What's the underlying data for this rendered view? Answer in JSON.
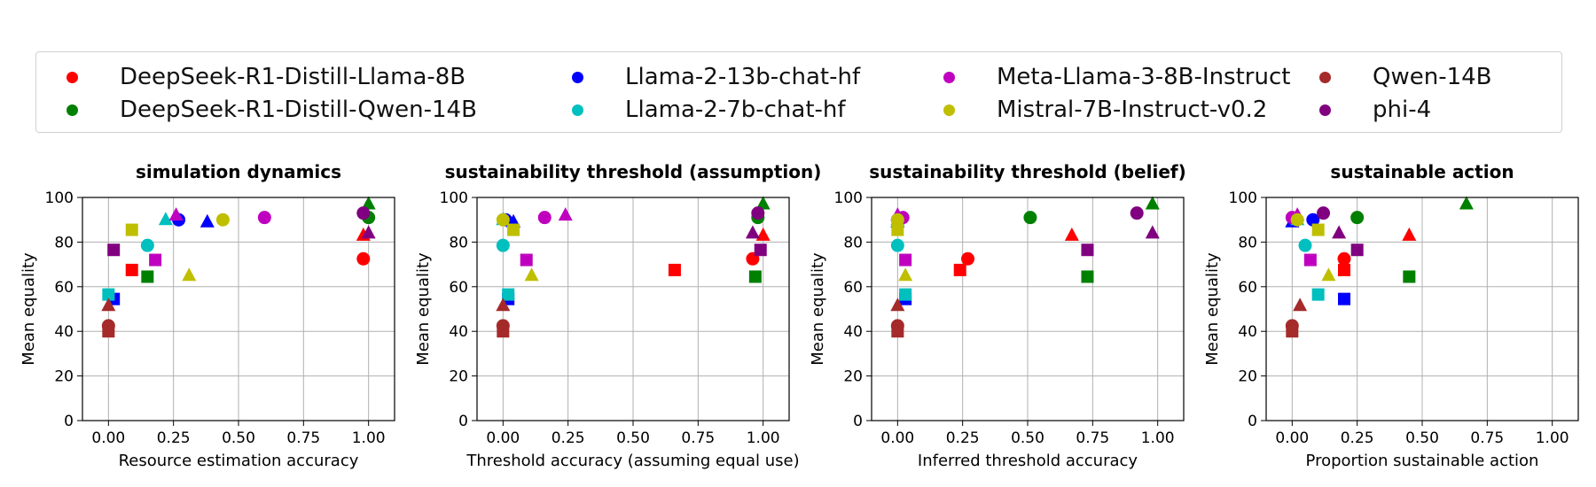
{
  "legend": {
    "entries": [
      {
        "name": "DeepSeek-R1-Distill-Llama-8B",
        "color": "#ff0000"
      },
      {
        "name": "DeepSeek-R1-Distill-Qwen-14B",
        "color": "#008000"
      },
      {
        "name": "Llama-2-13b-chat-hf",
        "color": "#0000ff"
      },
      {
        "name": "Llama-2-7b-chat-hf",
        "color": "#00bfbf"
      },
      {
        "name": "Meta-Llama-3-8B-Instruct",
        "color": "#bf00bf"
      },
      {
        "name": "Mistral-7B-Instruct-v0.2",
        "color": "#bfbf00"
      },
      {
        "name": "Qwen-14B",
        "color": "#a52a2a"
      },
      {
        "name": "phi-4",
        "color": "#800080"
      }
    ],
    "placement": "top, above panels, 4 columns"
  },
  "chart_data": [
    {
      "type": "scatter",
      "title": "simulation dynamics",
      "xlabel": "Resource estimation accuracy",
      "ylabel": "Mean equality",
      "xlim": [
        -0.1,
        1.1
      ],
      "ylim": [
        0,
        100
      ],
      "xticks": [
        "0.00",
        "0.25",
        "0.50",
        "0.75",
        "1.00"
      ],
      "yticks": [
        "0",
        "20",
        "40",
        "60",
        "80",
        "100"
      ],
      "grid": true,
      "points": [
        {
          "series": "DeepSeek-R1-Distill-Llama-8B",
          "marker": "circle",
          "x": 0.98,
          "y": 72.5
        },
        {
          "series": "DeepSeek-R1-Distill-Llama-8B",
          "marker": "square",
          "x": 0.09,
          "y": 67.5
        },
        {
          "series": "DeepSeek-R1-Distill-Llama-8B",
          "marker": "triangle",
          "x": 0.98,
          "y": 83
        },
        {
          "series": "DeepSeek-R1-Distill-Qwen-14B",
          "marker": "circle",
          "x": 1.0,
          "y": 91
        },
        {
          "series": "DeepSeek-R1-Distill-Qwen-14B",
          "marker": "square",
          "x": 0.15,
          "y": 64.5
        },
        {
          "series": "DeepSeek-R1-Distill-Qwen-14B",
          "marker": "triangle",
          "x": 1.0,
          "y": 97
        },
        {
          "series": "Llama-2-13b-chat-hf",
          "marker": "circle",
          "x": 0.27,
          "y": 90
        },
        {
          "series": "Llama-2-13b-chat-hf",
          "marker": "square",
          "x": 0.02,
          "y": 54.5
        },
        {
          "series": "Llama-2-13b-chat-hf",
          "marker": "triangle",
          "x": 0.38,
          "y": 89
        },
        {
          "series": "Llama-2-7b-chat-hf",
          "marker": "circle",
          "x": 0.15,
          "y": 78.5
        },
        {
          "series": "Llama-2-7b-chat-hf",
          "marker": "square",
          "x": 0.0,
          "y": 56.5
        },
        {
          "series": "Llama-2-7b-chat-hf",
          "marker": "triangle",
          "x": 0.22,
          "y": 90
        },
        {
          "series": "Meta-Llama-3-8B-Instruct",
          "marker": "circle",
          "x": 0.6,
          "y": 91
        },
        {
          "series": "Meta-Llama-3-8B-Instruct",
          "marker": "square",
          "x": 0.18,
          "y": 72
        },
        {
          "series": "Meta-Llama-3-8B-Instruct",
          "marker": "triangle",
          "x": 0.26,
          "y": 92
        },
        {
          "series": "Mistral-7B-Instruct-v0.2",
          "marker": "circle",
          "x": 0.44,
          "y": 90
        },
        {
          "series": "Mistral-7B-Instruct-v0.2",
          "marker": "square",
          "x": 0.09,
          "y": 85.5
        },
        {
          "series": "Mistral-7B-Instruct-v0.2",
          "marker": "triangle",
          "x": 0.31,
          "y": 65
        },
        {
          "series": "Qwen-14B",
          "marker": "circle",
          "x": 0.0,
          "y": 42.5
        },
        {
          "series": "Qwen-14B",
          "marker": "square",
          "x": 0.0,
          "y": 40
        },
        {
          "series": "Qwen-14B",
          "marker": "triangle",
          "x": 0.0,
          "y": 51.5
        },
        {
          "series": "phi-4",
          "marker": "circle",
          "x": 0.98,
          "y": 93
        },
        {
          "series": "phi-4",
          "marker": "square",
          "x": 0.02,
          "y": 76.5
        },
        {
          "series": "phi-4",
          "marker": "triangle",
          "x": 1.0,
          "y": 84
        }
      ]
    },
    {
      "type": "scatter",
      "title": "sustainability threshold (assumption)",
      "xlabel": "Threshold accuracy (assuming equal use)",
      "ylabel": "Mean equality",
      "xlim": [
        -0.1,
        1.1
      ],
      "ylim": [
        0,
        100
      ],
      "xticks": [
        "0.00",
        "0.25",
        "0.50",
        "0.75",
        "1.00"
      ],
      "yticks": [
        "0",
        "20",
        "40",
        "60",
        "80",
        "100"
      ],
      "grid": true,
      "points": [
        {
          "series": "DeepSeek-R1-Distill-Llama-8B",
          "marker": "circle",
          "x": 0.96,
          "y": 72.5
        },
        {
          "series": "DeepSeek-R1-Distill-Llama-8B",
          "marker": "square",
          "x": 0.66,
          "y": 67.5
        },
        {
          "series": "DeepSeek-R1-Distill-Llama-8B",
          "marker": "triangle",
          "x": 1.0,
          "y": 83
        },
        {
          "series": "DeepSeek-R1-Distill-Qwen-14B",
          "marker": "circle",
          "x": 0.98,
          "y": 91
        },
        {
          "series": "DeepSeek-R1-Distill-Qwen-14B",
          "marker": "square",
          "x": 0.97,
          "y": 64.5
        },
        {
          "series": "DeepSeek-R1-Distill-Qwen-14B",
          "marker": "triangle",
          "x": 1.0,
          "y": 97
        },
        {
          "series": "Llama-2-13b-chat-hf",
          "marker": "circle",
          "x": 0.01,
          "y": 90
        },
        {
          "series": "Llama-2-13b-chat-hf",
          "marker": "square",
          "x": 0.02,
          "y": 54.5
        },
        {
          "series": "Llama-2-13b-chat-hf",
          "marker": "triangle",
          "x": 0.04,
          "y": 89
        },
        {
          "series": "Llama-2-7b-chat-hf",
          "marker": "circle",
          "x": 0.0,
          "y": 78.5
        },
        {
          "series": "Llama-2-7b-chat-hf",
          "marker": "square",
          "x": 0.02,
          "y": 56.5
        },
        {
          "series": "Llama-2-7b-chat-hf",
          "marker": "triangle",
          "x": 0.0,
          "y": 90
        },
        {
          "series": "Meta-Llama-3-8B-Instruct",
          "marker": "circle",
          "x": 0.16,
          "y": 91
        },
        {
          "series": "Meta-Llama-3-8B-Instruct",
          "marker": "square",
          "x": 0.09,
          "y": 72
        },
        {
          "series": "Meta-Llama-3-8B-Instruct",
          "marker": "triangle",
          "x": 0.24,
          "y": 92
        },
        {
          "series": "Mistral-7B-Instruct-v0.2",
          "marker": "circle",
          "x": 0.0,
          "y": 90
        },
        {
          "series": "Mistral-7B-Instruct-v0.2",
          "marker": "square",
          "x": 0.04,
          "y": 85.5
        },
        {
          "series": "Mistral-7B-Instruct-v0.2",
          "marker": "triangle",
          "x": 0.11,
          "y": 65
        },
        {
          "series": "Qwen-14B",
          "marker": "circle",
          "x": 0.0,
          "y": 42.5
        },
        {
          "series": "Qwen-14B",
          "marker": "square",
          "x": 0.0,
          "y": 40
        },
        {
          "series": "Qwen-14B",
          "marker": "triangle",
          "x": 0.0,
          "y": 51.5
        },
        {
          "series": "phi-4",
          "marker": "circle",
          "x": 0.98,
          "y": 93
        },
        {
          "series": "phi-4",
          "marker": "square",
          "x": 0.99,
          "y": 76.5
        },
        {
          "series": "phi-4",
          "marker": "triangle",
          "x": 0.96,
          "y": 84
        }
      ]
    },
    {
      "type": "scatter",
      "title": "sustainability threshold (belief)",
      "xlabel": "Inferred threshold accuracy",
      "ylabel": "Mean equality",
      "xlim": [
        -0.1,
        1.1
      ],
      "ylim": [
        0,
        100
      ],
      "xticks": [
        "0.00",
        "0.25",
        "0.50",
        "0.75",
        "1.00"
      ],
      "yticks": [
        "0",
        "20",
        "40",
        "60",
        "80",
        "100"
      ],
      "grid": true,
      "points": [
        {
          "series": "DeepSeek-R1-Distill-Llama-8B",
          "marker": "circle",
          "x": 0.27,
          "y": 72.5
        },
        {
          "series": "DeepSeek-R1-Distill-Llama-8B",
          "marker": "square",
          "x": 0.24,
          "y": 67.5
        },
        {
          "series": "DeepSeek-R1-Distill-Llama-8B",
          "marker": "triangle",
          "x": 0.67,
          "y": 83
        },
        {
          "series": "DeepSeek-R1-Distill-Qwen-14B",
          "marker": "circle",
          "x": 0.51,
          "y": 91
        },
        {
          "series": "DeepSeek-R1-Distill-Qwen-14B",
          "marker": "square",
          "x": 0.73,
          "y": 64.5
        },
        {
          "series": "DeepSeek-R1-Distill-Qwen-14B",
          "marker": "triangle",
          "x": 0.98,
          "y": 97
        },
        {
          "series": "Llama-2-13b-chat-hf",
          "marker": "circle",
          "x": 0.0,
          "y": 90
        },
        {
          "series": "Llama-2-13b-chat-hf",
          "marker": "square",
          "x": 0.03,
          "y": 54.5
        },
        {
          "series": "Llama-2-13b-chat-hf",
          "marker": "triangle",
          "x": 0.0,
          "y": 89
        },
        {
          "series": "Llama-2-7b-chat-hf",
          "marker": "circle",
          "x": 0.0,
          "y": 78.5
        },
        {
          "series": "Llama-2-7b-chat-hf",
          "marker": "square",
          "x": 0.03,
          "y": 56.5
        },
        {
          "series": "Llama-2-7b-chat-hf",
          "marker": "triangle",
          "x": 0.0,
          "y": 90
        },
        {
          "series": "Meta-Llama-3-8B-Instruct",
          "marker": "circle",
          "x": 0.02,
          "y": 91
        },
        {
          "series": "Meta-Llama-3-8B-Instruct",
          "marker": "square",
          "x": 0.03,
          "y": 72
        },
        {
          "series": "Meta-Llama-3-8B-Instruct",
          "marker": "triangle",
          "x": 0.0,
          "y": 92
        },
        {
          "series": "Mistral-7B-Instruct-v0.2",
          "marker": "circle",
          "x": 0.0,
          "y": 90
        },
        {
          "series": "Mistral-7B-Instruct-v0.2",
          "marker": "square",
          "x": 0.0,
          "y": 85.5
        },
        {
          "series": "Mistral-7B-Instruct-v0.2",
          "marker": "triangle",
          "x": 0.03,
          "y": 65
        },
        {
          "series": "Qwen-14B",
          "marker": "circle",
          "x": 0.0,
          "y": 42.5
        },
        {
          "series": "Qwen-14B",
          "marker": "square",
          "x": 0.0,
          "y": 40
        },
        {
          "series": "Qwen-14B",
          "marker": "triangle",
          "x": 0.0,
          "y": 51.5
        },
        {
          "series": "phi-4",
          "marker": "circle",
          "x": 0.92,
          "y": 93
        },
        {
          "series": "phi-4",
          "marker": "square",
          "x": 0.73,
          "y": 76.5
        },
        {
          "series": "phi-4",
          "marker": "triangle",
          "x": 0.98,
          "y": 84
        }
      ]
    },
    {
      "type": "scatter",
      "title": "sustainable action",
      "xlabel": "Proportion sustainable action",
      "ylabel": "Mean equality",
      "xlim": [
        -0.1,
        1.1
      ],
      "ylim": [
        0,
        100
      ],
      "xticks": [
        "0.00",
        "0.25",
        "0.50",
        "0.75",
        "1.00"
      ],
      "yticks": [
        "0",
        "20",
        "40",
        "60",
        "80",
        "100"
      ],
      "grid": true,
      "points": [
        {
          "series": "DeepSeek-R1-Distill-Llama-8B",
          "marker": "circle",
          "x": 0.2,
          "y": 72.5
        },
        {
          "series": "DeepSeek-R1-Distill-Llama-8B",
          "marker": "square",
          "x": 0.2,
          "y": 67.5
        },
        {
          "series": "DeepSeek-R1-Distill-Llama-8B",
          "marker": "triangle",
          "x": 0.45,
          "y": 83
        },
        {
          "series": "DeepSeek-R1-Distill-Qwen-14B",
          "marker": "circle",
          "x": 0.25,
          "y": 91
        },
        {
          "series": "DeepSeek-R1-Distill-Qwen-14B",
          "marker": "square",
          "x": 0.45,
          "y": 64.5
        },
        {
          "series": "DeepSeek-R1-Distill-Qwen-14B",
          "marker": "triangle",
          "x": 0.67,
          "y": 97
        },
        {
          "series": "Llama-2-13b-chat-hf",
          "marker": "circle",
          "x": 0.08,
          "y": 90
        },
        {
          "series": "Llama-2-13b-chat-hf",
          "marker": "square",
          "x": 0.2,
          "y": 54.5
        },
        {
          "series": "Llama-2-13b-chat-hf",
          "marker": "triangle",
          "x": 0.0,
          "y": 89
        },
        {
          "series": "Llama-2-7b-chat-hf",
          "marker": "circle",
          "x": 0.05,
          "y": 78.5
        },
        {
          "series": "Llama-2-7b-chat-hf",
          "marker": "square",
          "x": 0.1,
          "y": 56.5
        },
        {
          "series": "Llama-2-7b-chat-hf",
          "marker": "triangle",
          "x": 0.02,
          "y": 90
        },
        {
          "series": "Meta-Llama-3-8B-Instruct",
          "marker": "circle",
          "x": 0.0,
          "y": 91
        },
        {
          "series": "Meta-Llama-3-8B-Instruct",
          "marker": "square",
          "x": 0.07,
          "y": 72
        },
        {
          "series": "Meta-Llama-3-8B-Instruct",
          "marker": "triangle",
          "x": 0.02,
          "y": 92
        },
        {
          "series": "Mistral-7B-Instruct-v0.2",
          "marker": "circle",
          "x": 0.02,
          "y": 90
        },
        {
          "series": "Mistral-7B-Instruct-v0.2",
          "marker": "square",
          "x": 0.1,
          "y": 85.5
        },
        {
          "series": "Mistral-7B-Instruct-v0.2",
          "marker": "triangle",
          "x": 0.14,
          "y": 65
        },
        {
          "series": "Qwen-14B",
          "marker": "circle",
          "x": 0.0,
          "y": 42.5
        },
        {
          "series": "Qwen-14B",
          "marker": "square",
          "x": 0.0,
          "y": 40
        },
        {
          "series": "Qwen-14B",
          "marker": "triangle",
          "x": 0.03,
          "y": 51.5
        },
        {
          "series": "phi-4",
          "marker": "circle",
          "x": 0.12,
          "y": 93
        },
        {
          "series": "phi-4",
          "marker": "square",
          "x": 0.25,
          "y": 76.5
        },
        {
          "series": "phi-4",
          "marker": "triangle",
          "x": 0.18,
          "y": 84
        }
      ]
    }
  ]
}
